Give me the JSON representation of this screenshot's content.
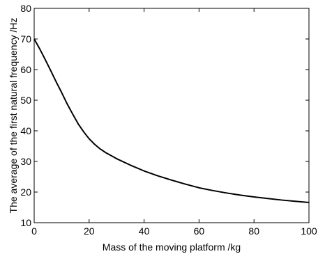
{
  "chart_data": {
    "type": "line",
    "title": "",
    "xlabel": "Mass of the moving platform /kg",
    "ylabel": "The average of the first natural frequency /Hz",
    "xlim": [
      0,
      100
    ],
    "ylim": [
      10,
      80
    ],
    "xticks": [
      0,
      20,
      40,
      60,
      80,
      100
    ],
    "yticks": [
      10,
      20,
      30,
      40,
      50,
      60,
      70,
      80
    ],
    "grid": false,
    "legend": "none",
    "line_color": "#000000",
    "series": [
      {
        "x": [
          0,
          2,
          4,
          6,
          8,
          10,
          12,
          14,
          16,
          18,
          20,
          22,
          24,
          26,
          28,
          30,
          35,
          40,
          45,
          50,
          55,
          60,
          65,
          70,
          75,
          80,
          85,
          90,
          95,
          100
        ],
        "values": [
          70,
          66.8,
          63.3,
          59.7,
          56.0,
          52.5,
          48.8,
          45.5,
          42.3,
          39.7,
          37.4,
          35.6,
          34.1,
          32.9,
          31.9,
          30.9,
          28.8,
          26.9,
          25.3,
          23.9,
          22.6,
          21.4,
          20.5,
          19.7,
          19.0,
          18.4,
          17.9,
          17.4,
          17.0,
          16.6
        ]
      }
    ]
  }
}
